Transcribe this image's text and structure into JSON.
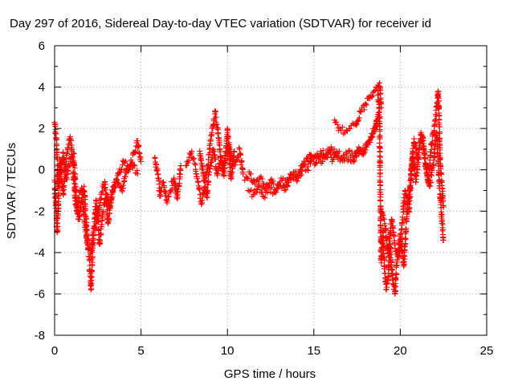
{
  "chart_data": {
    "type": "scatter",
    "title": "Day 297 of 2016, Sidereal Day-to-day VTEC variation (SDTVAR) for receiver id",
    "xlabel": "GPS time / hours",
    "ylabel": "SDTVAR / TECUs",
    "xlim": [
      0,
      25
    ],
    "ylim": [
      -8,
      6
    ],
    "xticks": [
      "0",
      "5",
      "10",
      "15",
      "20",
      "25"
    ],
    "yticks": [
      "6",
      "4",
      "2",
      "0",
      "-2",
      "-4",
      "-6",
      "-8"
    ],
    "grid": true,
    "marker": "+",
    "colors": {
      "points": "#ff0000",
      "grid": "#a0a0a0",
      "axes": "#000000"
    },
    "series": [
      {
        "segments": [
          [
            [
              0.0,
              2.3
            ],
            [
              0.1,
              1.5
            ],
            [
              0.2,
              -0.8
            ],
            [
              0.3,
              0.5
            ],
            [
              0.5,
              -1.2
            ],
            [
              0.7,
              0.8
            ],
            [
              0.9,
              1.6
            ],
            [
              1.0,
              1.0
            ],
            [
              1.2,
              -1.5
            ],
            [
              1.4,
              -2.4
            ],
            [
              1.6,
              -1.2
            ],
            [
              1.8,
              -3.0
            ],
            [
              2.0,
              -4.2
            ],
            [
              2.1,
              -5.8
            ],
            [
              2.2,
              -3.8
            ],
            [
              2.4,
              -1.5
            ],
            [
              2.6,
              -3.6
            ],
            [
              2.8,
              -2.0
            ],
            [
              3.0,
              -1.2
            ],
            [
              3.2,
              -1.8
            ],
            [
              3.4,
              -0.8
            ],
            [
              3.7,
              -0.2
            ],
            [
              4.0,
              0.4
            ],
            [
              4.3,
              0.0
            ],
            [
              4.6,
              0.8
            ],
            [
              4.8,
              1.4
            ],
            [
              5.0,
              0.4
            ]
          ],
          [
            [
              0.0,
              -0.5
            ],
            [
              0.15,
              -3.0
            ],
            [
              0.3,
              0.0
            ],
            [
              0.5,
              0.8
            ],
            [
              0.7,
              -0.4
            ],
            [
              0.9,
              0.5
            ],
            [
              1.1,
              0.8
            ],
            [
              1.3,
              -2.0
            ],
            [
              1.5,
              -1.0
            ],
            [
              1.7,
              -0.8
            ],
            [
              1.9,
              -3.5
            ],
            [
              2.1,
              -4.0
            ],
            [
              2.3,
              -2.8
            ],
            [
              2.5,
              -2.2
            ],
            [
              2.7,
              -1.2
            ],
            [
              2.9,
              -0.6
            ],
            [
              3.1,
              -2.6
            ],
            [
              3.3,
              -1.2
            ],
            [
              3.6,
              -0.5
            ],
            [
              3.9,
              -1.0
            ],
            [
              4.2,
              0.2
            ],
            [
              4.5,
              0.3
            ],
            [
              4.8,
              -0.2
            ]
          ],
          [
            [
              5.8,
              0.6
            ],
            [
              6.0,
              -0.4
            ],
            [
              6.1,
              -1.2
            ],
            [
              6.3,
              -0.6
            ],
            [
              6.5,
              -1.6
            ],
            [
              6.7,
              -1.0
            ],
            [
              6.9,
              -0.4
            ],
            [
              7.1,
              -1.4
            ],
            [
              7.3,
              0.2
            ]
          ],
          [
            [
              7.6,
              0.2
            ],
            [
              7.9,
              0.8
            ],
            [
              8.1,
              0.3
            ],
            [
              8.3,
              -0.6
            ],
            [
              8.5,
              -1.6
            ],
            [
              8.7,
              -0.8
            ],
            [
              8.9,
              0.5
            ],
            [
              9.1,
              1.8
            ],
            [
              9.3,
              2.8
            ],
            [
              9.5,
              1.5
            ],
            [
              9.7,
              0.0
            ],
            [
              9.9,
              0.8
            ],
            [
              10.1,
              1.2
            ],
            [
              10.3,
              0.2
            ],
            [
              10.5,
              0.4
            ],
            [
              10.7,
              1.0
            ],
            [
              10.9,
              -0.2
            ]
          ],
          [
            [
              8.4,
              0.9
            ],
            [
              8.6,
              -0.2
            ],
            [
              8.8,
              -1.3
            ],
            [
              9.0,
              0.2
            ],
            [
              9.2,
              1.0
            ],
            [
              9.4,
              -0.2
            ],
            [
              9.6,
              0.6
            ],
            [
              9.8,
              -0.3
            ],
            [
              10.0,
              2.0
            ],
            [
              10.2,
              -0.4
            ],
            [
              10.4,
              0.9
            ]
          ],
          [
            [
              11.0,
              -0.5
            ],
            [
              11.3,
              -0.2
            ],
            [
              11.6,
              -0.7
            ],
            [
              11.9,
              -0.4
            ],
            [
              12.2,
              -0.9
            ],
            [
              12.5,
              -0.5
            ],
            [
              12.8,
              -1.0
            ],
            [
              13.1,
              -0.4
            ],
            [
              13.4,
              -0.7
            ],
            [
              13.7,
              -0.2
            ],
            [
              14.0,
              -0.5
            ],
            [
              14.3,
              0.2
            ],
            [
              14.6,
              0.0
            ],
            [
              14.9,
              0.5
            ],
            [
              15.2,
              0.8
            ],
            [
              15.5,
              0.4
            ],
            [
              15.8,
              1.0
            ],
            [
              16.1,
              0.5
            ],
            [
              16.4,
              0.8
            ],
            [
              16.7,
              0.7
            ],
            [
              17.0,
              0.9
            ],
            [
              17.3,
              0.6
            ],
            [
              17.6,
              1.1
            ],
            [
              17.9,
              0.8
            ],
            [
              18.2,
              1.4
            ],
            [
              18.5,
              1.9
            ],
            [
              18.7,
              2.5
            ]
          ],
          [
            [
              11.2,
              -1.0
            ],
            [
              11.5,
              -1.2
            ],
            [
              11.8,
              -0.8
            ],
            [
              12.1,
              -1.3
            ],
            [
              12.4,
              -0.9
            ],
            [
              12.7,
              -1.1
            ],
            [
              13.0,
              -0.8
            ],
            [
              13.3,
              -1.0
            ],
            [
              13.6,
              -0.4
            ],
            [
              13.9,
              -0.1
            ],
            [
              14.2,
              -0.3
            ],
            [
              14.5,
              0.4
            ],
            [
              14.8,
              0.7
            ],
            [
              15.1,
              0.3
            ],
            [
              15.4,
              0.9
            ],
            [
              15.7,
              0.6
            ],
            [
              16.0,
              1.1
            ],
            [
              16.3,
              0.8
            ],
            [
              16.6,
              0.5
            ],
            [
              16.9,
              0.6
            ],
            [
              17.2,
              0.4
            ],
            [
              17.5,
              0.7
            ],
            [
              17.8,
              0.9
            ],
            [
              18.1,
              1.2
            ],
            [
              18.4,
              1.6
            ],
            [
              18.6,
              2.2
            ],
            [
              18.8,
              3.0
            ]
          ],
          [
            [
              16.2,
              2.4
            ],
            [
              16.5,
              2.0
            ],
            [
              16.8,
              1.8
            ],
            [
              17.1,
              2.0
            ],
            [
              17.4,
              2.2
            ],
            [
              17.7,
              2.8
            ],
            [
              18.0,
              3.2
            ],
            [
              18.3,
              3.6
            ],
            [
              18.6,
              4.0
            ],
            [
              18.8,
              4.2
            ],
            [
              18.9,
              3.0
            ]
          ],
          [
            [
              18.7,
              3.8
            ],
            [
              18.8,
              2.8
            ],
            [
              18.85,
              -1.5
            ],
            [
              18.9,
              -4.5
            ],
            [
              19.0,
              -3.0
            ],
            [
              19.1,
              -5.0
            ],
            [
              19.2,
              -5.8
            ],
            [
              19.3,
              -5.2
            ],
            [
              19.4,
              -3.6
            ],
            [
              19.5,
              -4.8
            ],
            [
              19.6,
              -5.5
            ],
            [
              19.7,
              -6.0
            ],
            [
              19.8,
              -4.5
            ],
            [
              20.0,
              -3.2
            ],
            [
              20.2,
              -4.6
            ],
            [
              20.4,
              -2.0
            ],
            [
              20.6,
              -0.5
            ],
            [
              20.8,
              1.5
            ],
            [
              21.0,
              0.5
            ],
            [
              21.2,
              1.8
            ],
            [
              21.4,
              0.8
            ],
            [
              21.6,
              -0.6
            ],
            [
              21.8,
              1.2
            ],
            [
              22.0,
              2.2
            ],
            [
              22.2,
              3.8
            ],
            [
              22.3,
              0.5
            ],
            [
              22.5,
              -1.8
            ]
          ],
          [
            [
              18.9,
              -2.0
            ],
            [
              19.1,
              -2.6
            ],
            [
              19.3,
              -4.0
            ],
            [
              19.5,
              -2.4
            ],
            [
              19.7,
              -3.8
            ],
            [
              19.9,
              -4.2
            ],
            [
              20.1,
              -2.6
            ],
            [
              20.3,
              -1.0
            ],
            [
              20.5,
              -2.0
            ],
            [
              20.7,
              0.8
            ],
            [
              20.9,
              -0.6
            ],
            [
              21.1,
              1.0
            ],
            [
              21.3,
              1.6
            ],
            [
              21.5,
              0.0
            ],
            [
              21.7,
              -0.8
            ],
            [
              21.9,
              0.2
            ],
            [
              22.1,
              1.8
            ],
            [
              22.3,
              -1.2
            ],
            [
              22.5,
              -3.4
            ]
          ]
        ]
      }
    ]
  }
}
